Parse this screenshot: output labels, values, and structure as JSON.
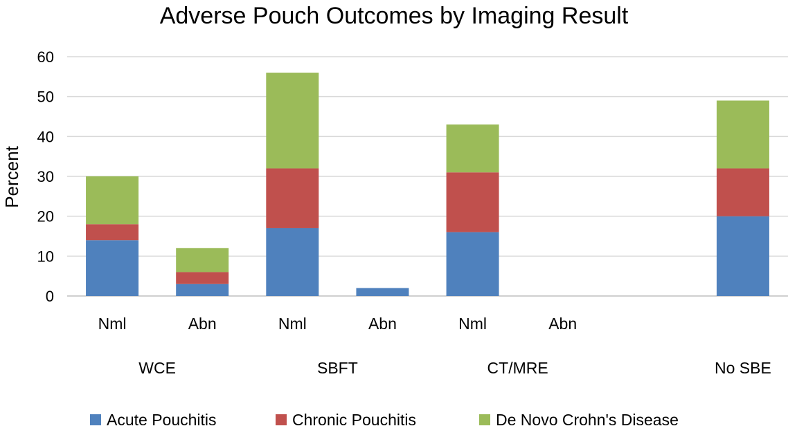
{
  "chart_data": {
    "type": "bar",
    "stacked": true,
    "title": "Adverse Pouch Outcomes by Imaging Result",
    "ylabel": "Percent",
    "xlabel": "",
    "ylim": [
      0,
      60
    ],
    "yticks": [
      0,
      10,
      20,
      30,
      40,
      50,
      60
    ],
    "grid": true,
    "legend_position": "bottom",
    "groups": [
      "WCE",
      "SBFT",
      "CT/MRE",
      "No SBE"
    ],
    "categories": [
      {
        "group": "WCE",
        "label": "Nml"
      },
      {
        "group": "WCE",
        "label": "Abn"
      },
      {
        "group": "SBFT",
        "label": "Nml"
      },
      {
        "group": "SBFT",
        "label": "Abn"
      },
      {
        "group": "CT/MRE",
        "label": "Nml"
      },
      {
        "group": "CT/MRE",
        "label": "Abn"
      },
      {
        "group": "No SBE",
        "label": ""
      }
    ],
    "series": [
      {
        "name": "Acute Pouchitis",
        "color": "#4f81bd",
        "values": [
          14,
          3,
          17,
          2,
          16,
          0,
          20
        ]
      },
      {
        "name": "Chronic Pouchitis",
        "color": "#c0504d",
        "values": [
          4,
          3,
          15,
          0,
          15,
          0,
          12
        ]
      },
      {
        "name": "De Novo Crohn's Disease",
        "color": "#9bbb59",
        "values": [
          12,
          6,
          24,
          0,
          12,
          0,
          17
        ]
      }
    ]
  }
}
